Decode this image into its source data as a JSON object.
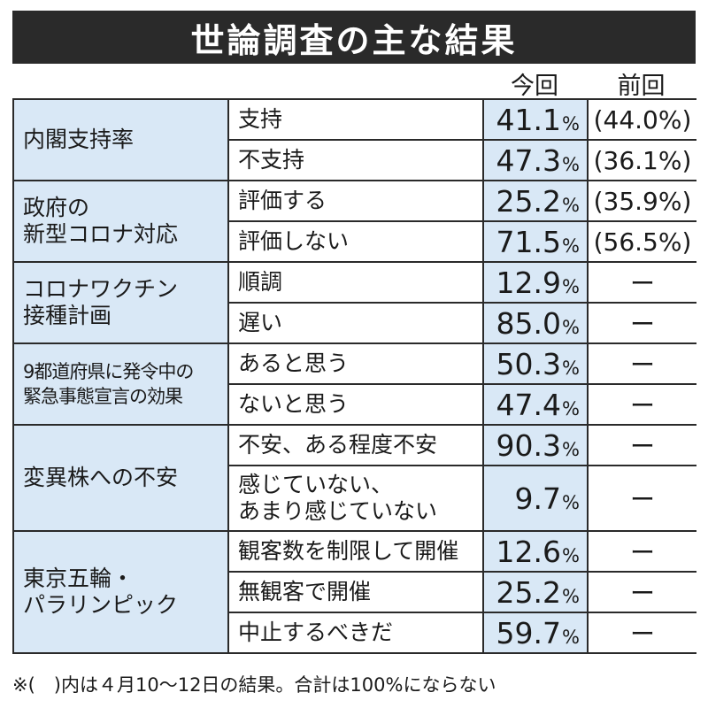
{
  "title": "世論調査の主な結果",
  "columns": {
    "current": "今回",
    "previous": "前回"
  },
  "percent_sign": "%",
  "groups": [
    {
      "category": [
        "内閣支持率"
      ],
      "rows": [
        {
          "item": [
            "支持"
          ],
          "current": "41.1",
          "previous": "(44.0%)"
        },
        {
          "item": [
            "不支持"
          ],
          "current": "47.3",
          "previous": "(36.1%)"
        }
      ]
    },
    {
      "category": [
        "政府の",
        "新型コロナ対応"
      ],
      "rows": [
        {
          "item": [
            "評価する"
          ],
          "current": "25.2",
          "previous": "(35.9%)"
        },
        {
          "item": [
            "評価しない"
          ],
          "current": "71.5",
          "previous": "(56.5%)"
        }
      ]
    },
    {
      "category": [
        "コロナワクチン",
        "接種計画"
      ],
      "rows": [
        {
          "item": [
            "順調"
          ],
          "current": "12.9",
          "previous": "ー"
        },
        {
          "item": [
            "遅い"
          ],
          "current": "85.0",
          "previous": "ー"
        }
      ]
    },
    {
      "category": [
        "9都道府県に発令中の",
        "緊急事態宣言の効果"
      ],
      "rows": [
        {
          "item": [
            "あると思う"
          ],
          "current": "50.3",
          "previous": "ー"
        },
        {
          "item": [
            "ないと思う"
          ],
          "current": "47.4",
          "previous": "ー"
        }
      ]
    },
    {
      "category": [
        "変異株への不安"
      ],
      "rows": [
        {
          "item": [
            "不安、ある程度不安"
          ],
          "current": "90.3",
          "previous": "ー"
        },
        {
          "item": [
            "感じていない、",
            "あまり感じていない"
          ],
          "current": "9.7",
          "previous": "ー"
        }
      ]
    },
    {
      "category": [
        "東京五輪・",
        "パラリンピック"
      ],
      "rows": [
        {
          "item": [
            "観客数を制限して開催"
          ],
          "current": "12.6",
          "previous": "ー"
        },
        {
          "item": [
            "無観客で開催"
          ],
          "current": "25.2",
          "previous": "ー"
        },
        {
          "item": [
            "中止するべきだ"
          ],
          "current": "59.7",
          "previous": "ー"
        }
      ]
    }
  ],
  "footnote": "※(　)内は４月10～12日の結果。合計は100%にならない"
}
